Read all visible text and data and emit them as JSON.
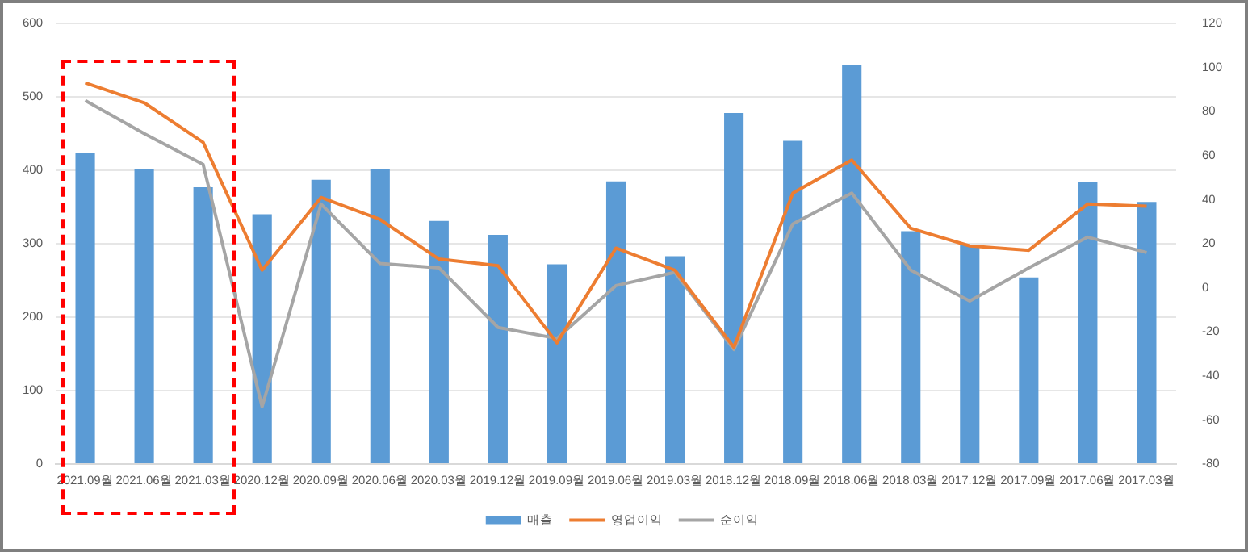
{
  "chart_data": {
    "type": "bar",
    "categories": [
      "2021.09월",
      "2021.06월",
      "2021.03월",
      "2020.12월",
      "2020.09월",
      "2020.06월",
      "2020.03월",
      "2019.12월",
      "2019.09월",
      "2019.06월",
      "2019.03월",
      "2018.12월",
      "2018.09월",
      "2018.06월",
      "2018.03월",
      "2017.12월",
      "2017.09월",
      "2017.06월",
      "2017.03월"
    ],
    "series": [
      {
        "name": "매출",
        "color": "#5b9bd5",
        "values": [
          423,
          402,
          377,
          340,
          387,
          402,
          331,
          312,
          272,
          385,
          283,
          478,
          440,
          543,
          317,
          298,
          254,
          384,
          357
        ]
      },
      {
        "name": "영업이익",
        "type": "line",
        "axis": "y2",
        "color": "#ed7d31",
        "values": [
          93,
          84,
          66,
          8,
          41,
          31,
          13,
          10,
          -25,
          18,
          8,
          -27,
          43,
          58,
          27,
          19,
          17,
          38,
          37
        ]
      },
      {
        "name": "순이익",
        "type": "line",
        "axis": "y2",
        "color": "#a5a5a5",
        "values": [
          85,
          70,
          56,
          -54,
          38,
          11,
          9,
          -18,
          -23,
          1,
          7,
          -28,
          29,
          43,
          8,
          -6,
          9,
          23,
          16
        ]
      }
    ],
    "ylim": [
      0,
      600
    ],
    "yticks": [
      0,
      100,
      200,
      300,
      400,
      500,
      600
    ],
    "y2lim": [
      -80,
      120
    ],
    "y2ticks": [
      -80,
      -60,
      -40,
      -20,
      0,
      20,
      40,
      60,
      80,
      100,
      120
    ],
    "grid": "y",
    "legend": "bottom",
    "marker": "none",
    "line_style": "solid"
  }
}
